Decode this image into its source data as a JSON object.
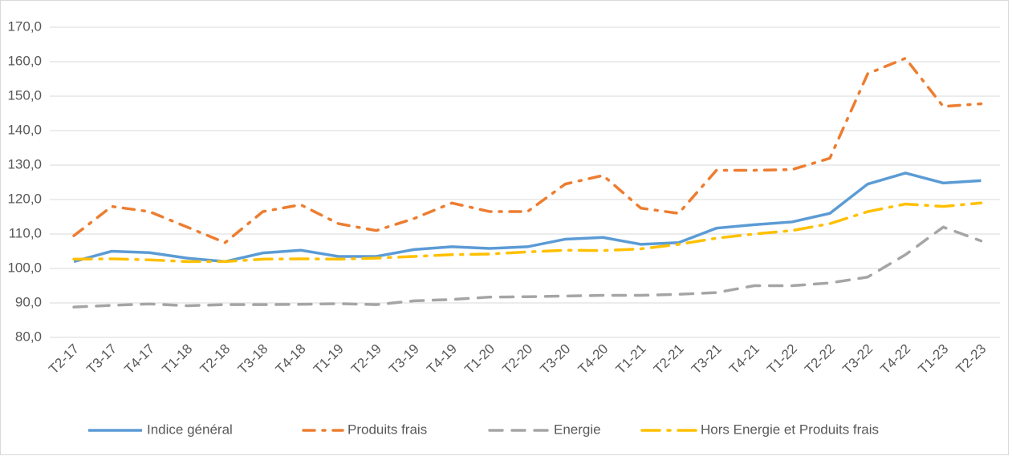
{
  "chart_data": {
    "type": "line",
    "categories": [
      "T2-17",
      "T3-17",
      "T4-17",
      "T1-18",
      "T2-18",
      "T3-18",
      "T4-18",
      "T1-19",
      "T2-19",
      "T3-19",
      "T4-19",
      "T1-20",
      "T2-20",
      "T3-20",
      "T4-20",
      "T1-21",
      "T2-21",
      "T3-21",
      "T4-21",
      "T1-22",
      "T2-22",
      "T3-22",
      "T4-22",
      "T1-23",
      "T2-23"
    ],
    "series": [
      {
        "name": "Indice général",
        "color": "#5b9bd5",
        "values": [
          102,
          105,
          104.6,
          103,
          102,
          104.5,
          105.3,
          103.5,
          103.5,
          105.5,
          106.3,
          105.8,
          106.3,
          108.5,
          109,
          107,
          107.5,
          111.7,
          112.7,
          113.5,
          116,
          124.5,
          127.7,
          124.8,
          125.5
        ]
      },
      {
        "name": "Produits frais",
        "color": "#ed7d31",
        "values": [
          109.5,
          118,
          116.5,
          112,
          107.5,
          116.5,
          118.5,
          113,
          111,
          114.5,
          119,
          116.5,
          116.5,
          124.5,
          127,
          117.5,
          116,
          128.5,
          128.5,
          128.7,
          132,
          156.5,
          161,
          147,
          147.8
        ]
      },
      {
        "name": "Energie",
        "color": "#a5a5a5",
        "values": [
          88.8,
          89.3,
          89.7,
          89.2,
          89.5,
          89.5,
          89.6,
          89.8,
          89.5,
          90.6,
          91,
          91.7,
          91.8,
          92,
          92.2,
          92.2,
          92.5,
          93,
          95,
          95,
          95.8,
          97.5,
          104,
          112,
          108
        ]
      },
      {
        "name": "Hors Energie et Produits frais",
        "color": "#ffc000",
        "values": [
          102.7,
          102.8,
          102.5,
          102,
          102,
          102.7,
          102.8,
          102.7,
          103,
          103.5,
          104,
          104.2,
          104.8,
          105.3,
          105.2,
          105.7,
          107,
          108.8,
          110,
          111,
          113,
          116.5,
          118.7,
          118,
          119
        ]
      }
    ],
    "ylim": [
      80,
      170
    ],
    "yticks": [
      {
        "value": 80,
        "label": "80,0"
      },
      {
        "value": 90,
        "label": "90,0"
      },
      {
        "value": 100,
        "label": "100,0"
      },
      {
        "value": 110,
        "label": "110,0"
      },
      {
        "value": 120,
        "label": "120,0"
      },
      {
        "value": 130,
        "label": "130,0"
      },
      {
        "value": 140,
        "label": "140,0"
      },
      {
        "value": 150,
        "label": "150,0"
      },
      {
        "value": 160,
        "label": "160,0"
      },
      {
        "value": 170,
        "label": "170,0"
      }
    ],
    "grid": true,
    "legend": "bottom"
  }
}
